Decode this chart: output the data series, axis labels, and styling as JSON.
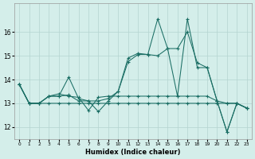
{
  "xlabel": "Humidex (Indice chaleur)",
  "bg_color": "#d4eeea",
  "grid_color": "#b4d4d0",
  "line_color": "#1a6e64",
  "xlim_min": -0.5,
  "xlim_max": 23.5,
  "ylim_min": 11.5,
  "ylim_max": 17.2,
  "yticks": [
    12,
    13,
    14,
    15,
    16
  ],
  "xticks": [
    0,
    1,
    2,
    3,
    4,
    5,
    6,
    7,
    8,
    9,
    10,
    11,
    12,
    13,
    14,
    15,
    16,
    17,
    18,
    19,
    20,
    21,
    22,
    23
  ],
  "series": [
    [
      13.8,
      13.0,
      13.0,
      13.3,
      13.3,
      14.1,
      13.2,
      13.1,
      12.65,
      13.1,
      13.5,
      14.9,
      15.1,
      15.05,
      16.55,
      15.3,
      13.3,
      16.55,
      14.5,
      14.5,
      13.1,
      11.8,
      13.0,
      12.8
    ],
    [
      13.8,
      13.0,
      13.0,
      13.3,
      13.3,
      13.35,
      13.1,
      13.1,
      13.1,
      13.2,
      13.5,
      14.75,
      15.05,
      15.05,
      15.0,
      15.3,
      15.3,
      16.0,
      14.7,
      14.5,
      13.1,
      11.8,
      13.0,
      12.8
    ],
    [
      13.8,
      13.0,
      13.0,
      13.0,
      13.0,
      13.0,
      13.0,
      13.0,
      13.0,
      13.0,
      13.0,
      13.0,
      13.0,
      13.0,
      13.0,
      13.0,
      13.0,
      13.0,
      13.0,
      13.0,
      13.0,
      13.0,
      13.0,
      12.8
    ],
    [
      13.8,
      13.0,
      13.0,
      13.3,
      13.4,
      13.3,
      13.25,
      12.7,
      13.25,
      13.3,
      13.3,
      13.3,
      13.3,
      13.3,
      13.3,
      13.3,
      13.3,
      13.3,
      13.3,
      13.3,
      13.1,
      13.0,
      13.0,
      12.8
    ]
  ]
}
